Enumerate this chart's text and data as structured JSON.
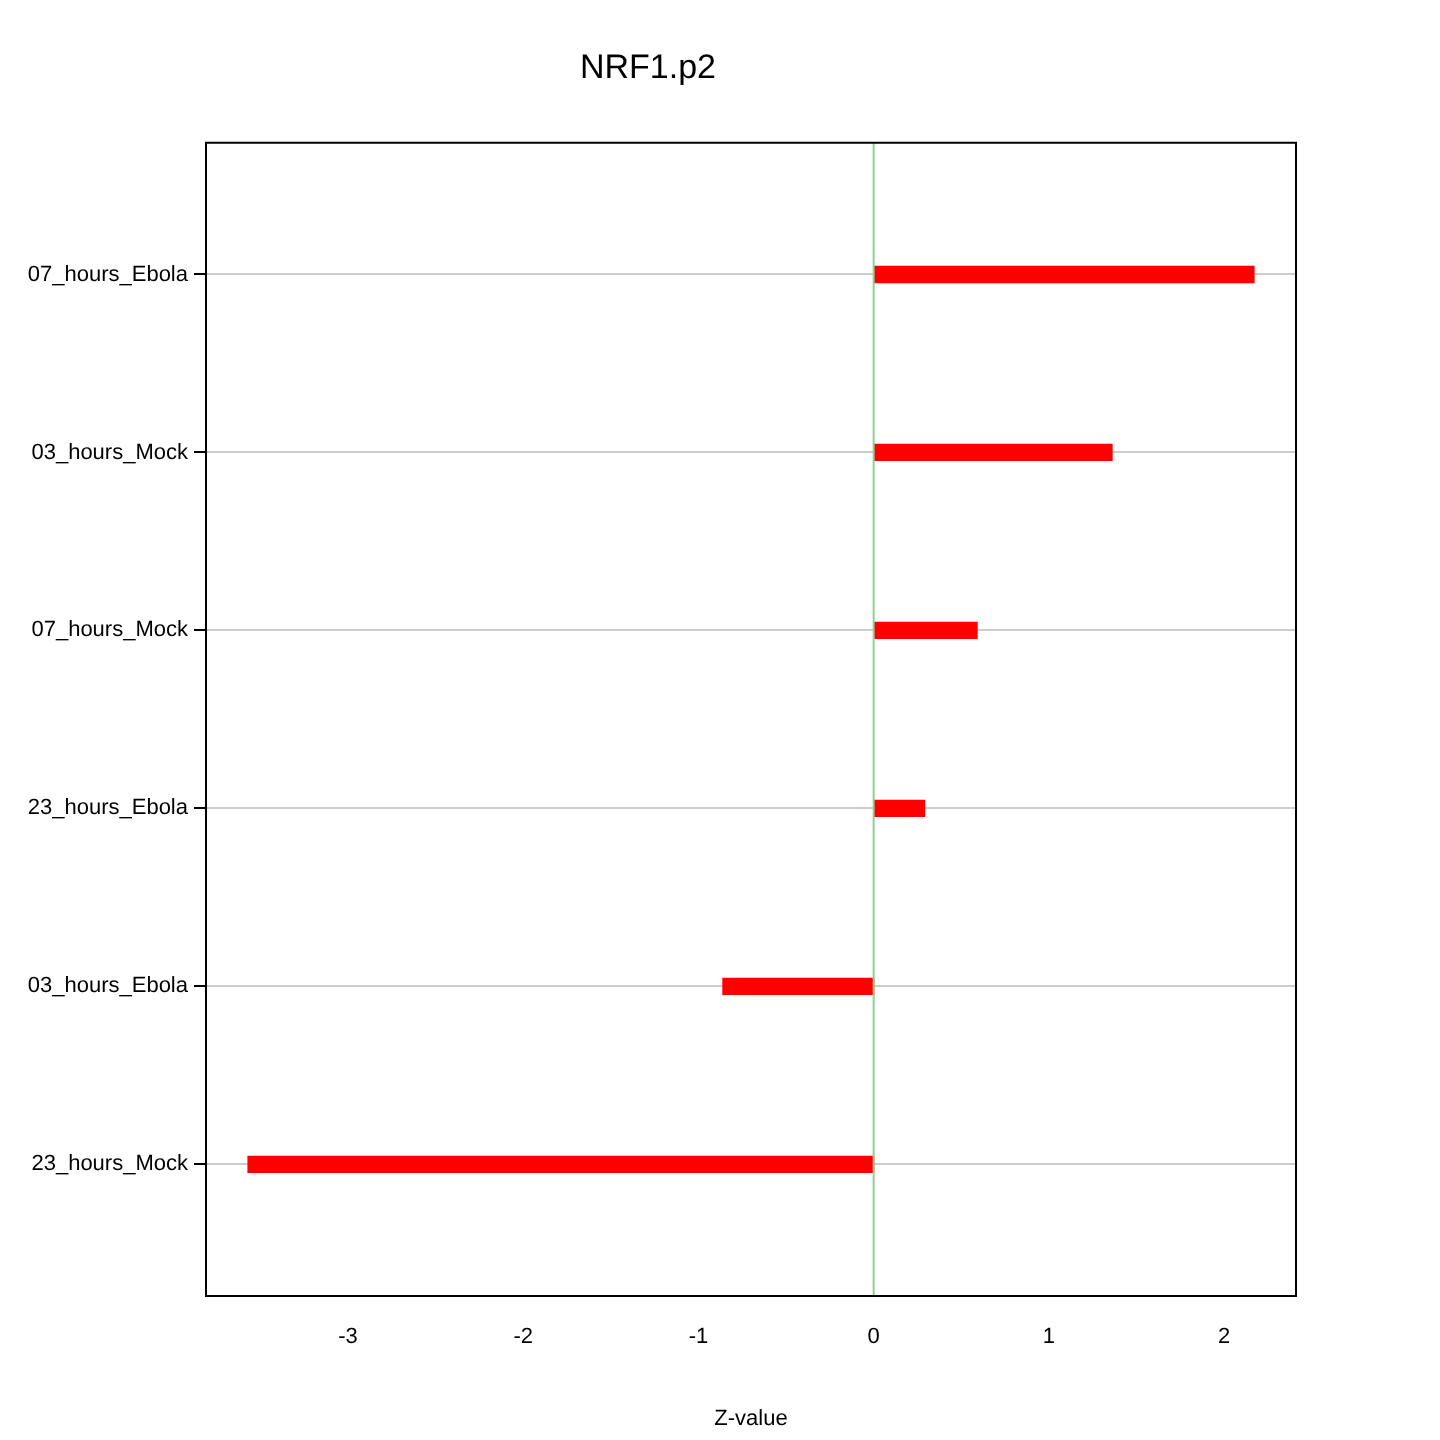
{
  "chart_data": {
    "type": "bar",
    "orientation": "horizontal",
    "title": "NRF1.p2",
    "xlabel": "Z-value",
    "categories": [
      "07_hours_Ebola",
      "03_hours_Mock",
      "07_hours_Mock",
      "23_hours_Ebola",
      "03_hours_Ebola",
      "23_hours_Mock"
    ],
    "values": [
      2.17,
      1.36,
      0.59,
      0.29,
      -0.86,
      -3.57
    ],
    "color": "#ff0000",
    "xlim": [
      -3.81,
      2.41
    ],
    "xticks": [
      -3,
      -2,
      -1,
      0,
      1,
      2
    ],
    "grid": "y",
    "legend": false,
    "ref_lines": [
      {
        "axis": "x",
        "value": 0,
        "color": "#90d090"
      }
    ]
  }
}
